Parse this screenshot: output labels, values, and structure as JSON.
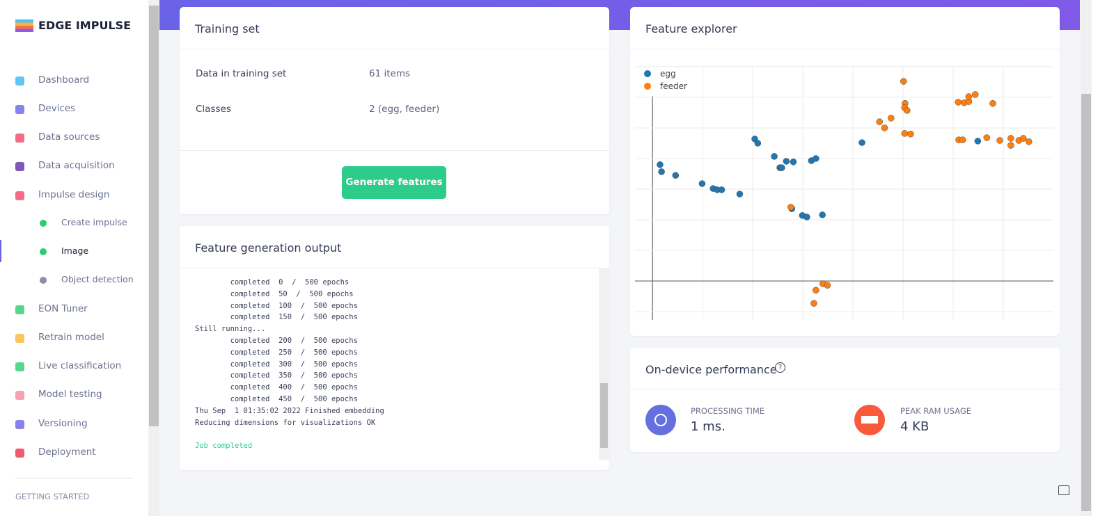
{
  "sidebar": {
    "brand": "EDGE IMPULSE",
    "nav": [
      "Dashboard",
      "Devices",
      "Data sources",
      "Data acquisition",
      "Impulse design",
      "Create impulse",
      "Image",
      "Object detection",
      "EON Tuner",
      "Retrain model",
      "Live classification",
      "Model testing",
      "Versioning",
      "Deployment"
    ],
    "section": "GETTING STARTED"
  },
  "training_set": {
    "title": "Training set",
    "rows": [
      [
        "Data in training set",
        "61 items"
      ],
      [
        "Classes",
        "2 (egg, feeder)"
      ]
    ],
    "button": "Generate features"
  },
  "feature_output": {
    "title": "Feature generation output",
    "log": [
      "        completed  0  /  500 epochs",
      "        completed  50  /  500 epochs",
      "        completed  100  /  500 epochs",
      "        completed  150  /  500 epochs",
      "Still running...",
      "        completed  200  /  500 epochs",
      "        completed  250  /  500 epochs",
      "        completed  300  /  500 epochs",
      "        completed  350  /  500 epochs",
      "        completed  400  /  500 epochs",
      "        completed  450  /  500 epochs",
      "Thu Sep  1 01:35:02 2022 Finished embedding",
      "Reducing dimensions for visualizations OK",
      "",
      "Job completed"
    ]
  },
  "feature_explorer": {
    "title": "Feature explorer",
    "chart_data": {
      "type": "scatter",
      "xlim": [
        -0.35,
        8.0
      ],
      "ylim": [
        -1.27,
        7.02
      ],
      "xticks": [
        0,
        1,
        2,
        3,
        4,
        5,
        6,
        7
      ],
      "yticks": [
        -1,
        0,
        1,
        2,
        3,
        4,
        5,
        6,
        7
      ],
      "grid": true,
      "legend": "top-left",
      "series": [
        {
          "name": "egg",
          "color": "#1f77b4",
          "x": [
            0.15,
            0.18,
            0.46,
            0.99,
            1.21,
            1.29,
            1.38,
            1.74,
            2.04,
            2.1,
            2.43,
            2.54,
            2.58,
            2.67,
            2.81,
            2.78,
            2.99,
            3.08,
            3.39,
            3.17,
            3.26,
            4.18,
            6.49
          ],
          "y": [
            3.8,
            3.57,
            3.45,
            3.18,
            3.02,
            2.98,
            2.98,
            2.84,
            4.64,
            4.5,
            4.07,
            3.7,
            3.7,
            3.91,
            3.89,
            2.36,
            2.14,
            2.09,
            2.16,
            3.93,
            4.0,
            4.52,
            4.57
          ]
        },
        {
          "name": "feeder",
          "color": "#ff7f0e",
          "x": [
            2.76,
            3.26,
            3.22,
            3.4,
            3.49,
            5.01,
            5.04,
            5.03,
            5.08,
            5.03,
            5.15,
            4.53,
            4.63,
            4.76,
            6.1,
            6.22,
            6.31,
            6.31,
            6.44,
            6.79,
            6.11,
            6.19,
            6.67,
            6.93,
            7.15,
            7.15,
            7.31,
            7.4,
            7.51
          ],
          "y": [
            2.41,
            -0.3,
            -0.73,
            -0.09,
            -0.14,
            6.52,
            5.8,
            5.66,
            5.57,
            4.82,
            4.8,
            5.2,
            5.0,
            5.32,
            5.84,
            5.82,
            5.86,
            6.02,
            6.09,
            5.8,
            4.61,
            4.61,
            4.68,
            4.59,
            4.66,
            4.43,
            4.59,
            4.66,
            4.55
          ]
        }
      ]
    }
  },
  "performance": {
    "title": "On-device performance",
    "metrics": [
      {
        "label": "PROCESSING TIME",
        "value": "1 ms."
      },
      {
        "label": "PEAK RAM USAGE",
        "value": "4 KB"
      }
    ]
  }
}
